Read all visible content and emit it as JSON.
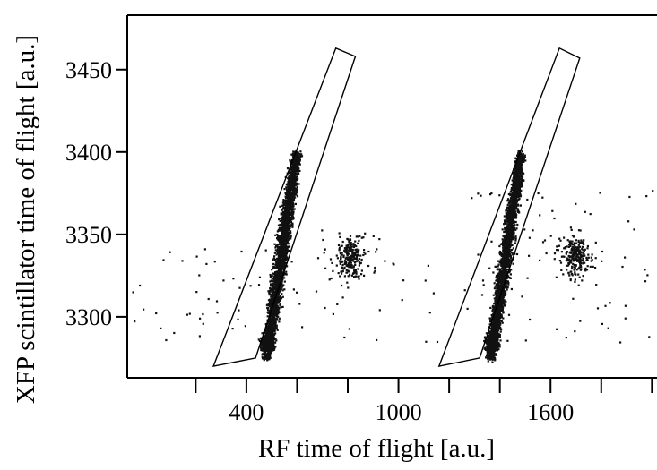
{
  "chart_data": {
    "type": "scatter",
    "title": "",
    "xlabel": "RF time of flight [a.u.]",
    "ylabel": "XFP scintillator time of flight [a.u.]",
    "xlim": [
      -70,
      2020
    ],
    "ylim": [
      3263,
      3483
    ],
    "x_ticks": [
      400,
      1000,
      1600
    ],
    "x_minor_ticks": [
      200,
      600,
      800,
      1200,
      1400,
      1800,
      2000
    ],
    "y_ticks": [
      3300,
      3350,
      3400,
      3450
    ],
    "grid": false,
    "gates": [
      {
        "corners": [
          [
            270,
            3270
          ],
          [
            436,
            3275
          ],
          [
            830,
            3458
          ],
          [
            753,
            3463
          ]
        ]
      },
      {
        "corners": [
          [
            1160,
            3270
          ],
          [
            1320,
            3275
          ],
          [
            1715,
            3457
          ],
          [
            1635,
            3463
          ]
        ]
      }
    ],
    "clusters": [
      {
        "kind": "band",
        "x_range": [
          440,
          630
        ],
        "y_range": [
          3275,
          3400
        ],
        "center": [
          530,
          3330
        ],
        "count": 2600
      },
      {
        "kind": "band",
        "x_range": [
          1325,
          1515
        ],
        "y_range": [
          3275,
          3400
        ],
        "center": [
          1420,
          3330
        ],
        "count": 2600
      },
      {
        "kind": "blob",
        "center": [
          810,
          3337
        ],
        "sigma": [
          30,
          9
        ],
        "count": 260
      },
      {
        "kind": "blob",
        "center": [
          1695,
          3337
        ],
        "sigma": [
          32,
          9
        ],
        "count": 270
      },
      {
        "kind": "sparse",
        "x_range": [
          -60,
          1180
        ],
        "y_range": [
          3285,
          3345
        ],
        "count": 70
      },
      {
        "kind": "sparse",
        "x_range": [
          1250,
          2000
        ],
        "y_range": [
          3285,
          3378
        ],
        "count": 70
      }
    ]
  }
}
